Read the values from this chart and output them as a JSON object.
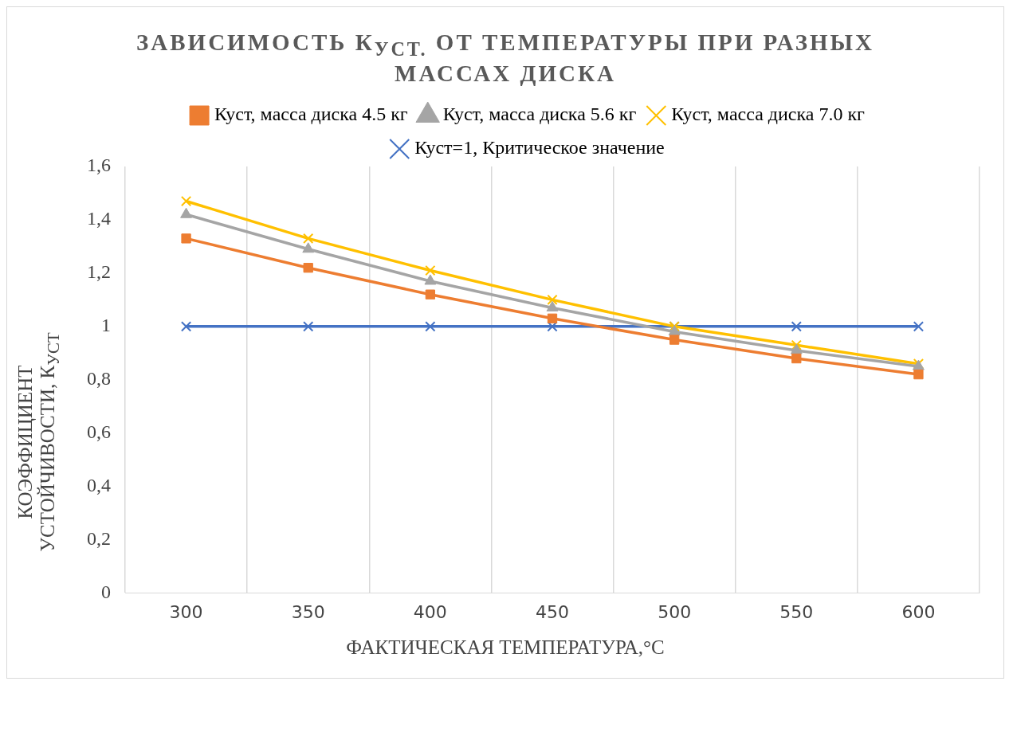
{
  "chart_data": {
    "type": "line",
    "title": "ЗАВИСИМОСТЬ К$_{УСТ.}$ ОТ ТЕМПЕРАТУРЫ ПРИ РАЗНЫХ МАССАХ ДИСКА",
    "xlabel": "ФАКТИЧЕСКАЯ ТЕМПЕРАТУРА,°C",
    "ylabel": "КОЭФФИЦИЕНТ УСТОЙЧИВОСТИ, К$_{УСТ}$",
    "categories": [
      "300",
      "350",
      "400",
      "450",
      "500",
      "550",
      "600"
    ],
    "series": [
      {
        "name": "Куст, масса диска 4.5 кг",
        "color": "#ed7d31",
        "marker": "square",
        "values": [
          1.33,
          1.22,
          1.12,
          1.03,
          0.95,
          0.88,
          0.82
        ]
      },
      {
        "name": "Куст, масса диска 5.6 кг",
        "color": "#a5a5a5",
        "marker": "triangle",
        "values": [
          1.42,
          1.29,
          1.17,
          1.07,
          0.98,
          0.91,
          0.85
        ]
      },
      {
        "name": "Куст, масса диска 7.0 кг",
        "color": "#ffc000",
        "marker": "cross",
        "values": [
          1.47,
          1.33,
          1.21,
          1.1,
          1.0,
          0.93,
          0.86
        ]
      },
      {
        "name": "Куст=1, Критическое значение",
        "color": "#4472c4",
        "marker": "cross",
        "values": [
          1,
          1,
          1,
          1,
          1,
          1,
          1
        ]
      }
    ],
    "ylim": [
      0,
      1.6
    ],
    "yticks": [
      0,
      {
        "value": 0.2,
        "label": "0,2"
      },
      {
        "value": 0.4,
        "label": "0,4"
      },
      {
        "value": 0.6,
        "label": "0,6"
      },
      {
        "value": 0.8,
        "label": "0,8"
      },
      1,
      {
        "value": 1.2,
        "label": "1,2"
      },
      {
        "value": 1.4,
        "label": "1,4"
      },
      {
        "value": 1.6,
        "label": "1,6"
      }
    ],
    "grid": "x",
    "legend": "top",
    "line_style": "solid"
  }
}
